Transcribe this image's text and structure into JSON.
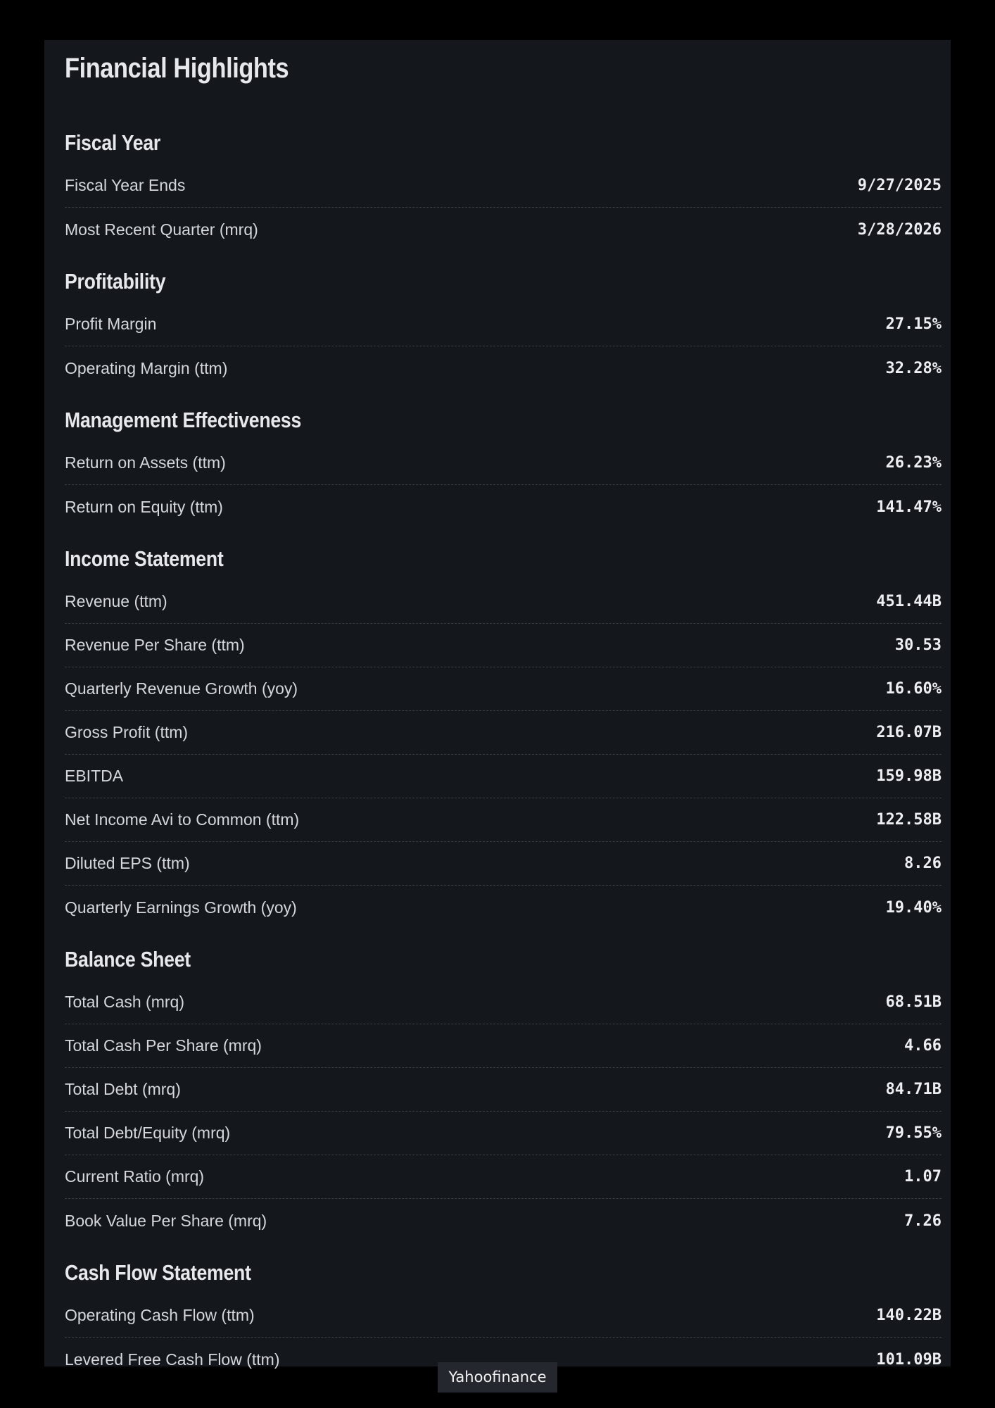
{
  "title": "Financial Highlights",
  "sections": [
    {
      "title": "Fiscal Year",
      "rows": [
        {
          "label": "Fiscal Year Ends",
          "value": "9/27/2025"
        },
        {
          "label": "Most Recent Quarter (mrq)",
          "value": "3/28/2026"
        }
      ]
    },
    {
      "title": "Profitability",
      "rows": [
        {
          "label": "Profit Margin",
          "value": "27.15%"
        },
        {
          "label": "Operating Margin (ttm)",
          "value": "32.28%"
        }
      ]
    },
    {
      "title": "Management Effectiveness",
      "rows": [
        {
          "label": "Return on Assets (ttm)",
          "value": "26.23%"
        },
        {
          "label": "Return on Equity (ttm)",
          "value": "141.47%"
        }
      ]
    },
    {
      "title": "Income Statement",
      "rows": [
        {
          "label": "Revenue (ttm)",
          "value": "451.44B"
        },
        {
          "label": "Revenue Per Share (ttm)",
          "value": "30.53"
        },
        {
          "label": "Quarterly Revenue Growth (yoy)",
          "value": "16.60%"
        },
        {
          "label": "Gross Profit (ttm)",
          "value": "216.07B"
        },
        {
          "label": "EBITDA",
          "value": "159.98B"
        },
        {
          "label": "Net Income Avi to Common (ttm)",
          "value": "122.58B"
        },
        {
          "label": "Diluted EPS (ttm)",
          "value": "8.26"
        },
        {
          "label": "Quarterly Earnings Growth (yoy)",
          "value": "19.40%"
        }
      ]
    },
    {
      "title": "Balance Sheet",
      "rows": [
        {
          "label": "Total Cash (mrq)",
          "value": "68.51B"
        },
        {
          "label": "Total Cash Per Share (mrq)",
          "value": "4.66"
        },
        {
          "label": "Total Debt (mrq)",
          "value": "84.71B"
        },
        {
          "label": "Total Debt/Equity (mrq)",
          "value": "79.55%"
        },
        {
          "label": "Current Ratio (mrq)",
          "value": "1.07"
        },
        {
          "label": "Book Value Per Share (mrq)",
          "value": "7.26"
        }
      ]
    },
    {
      "title": "Cash Flow Statement",
      "rows": [
        {
          "label": "Operating Cash Flow (ttm)",
          "value": "140.22B"
        },
        {
          "label": "Levered Free Cash Flow (ttm)",
          "value": "101.09B"
        }
      ]
    }
  ],
  "source": "Yahoofinance",
  "colors": {
    "background": "#000000",
    "panel": "#14171c",
    "text": "#e6e8eb",
    "divider": "#3a3f47"
  }
}
